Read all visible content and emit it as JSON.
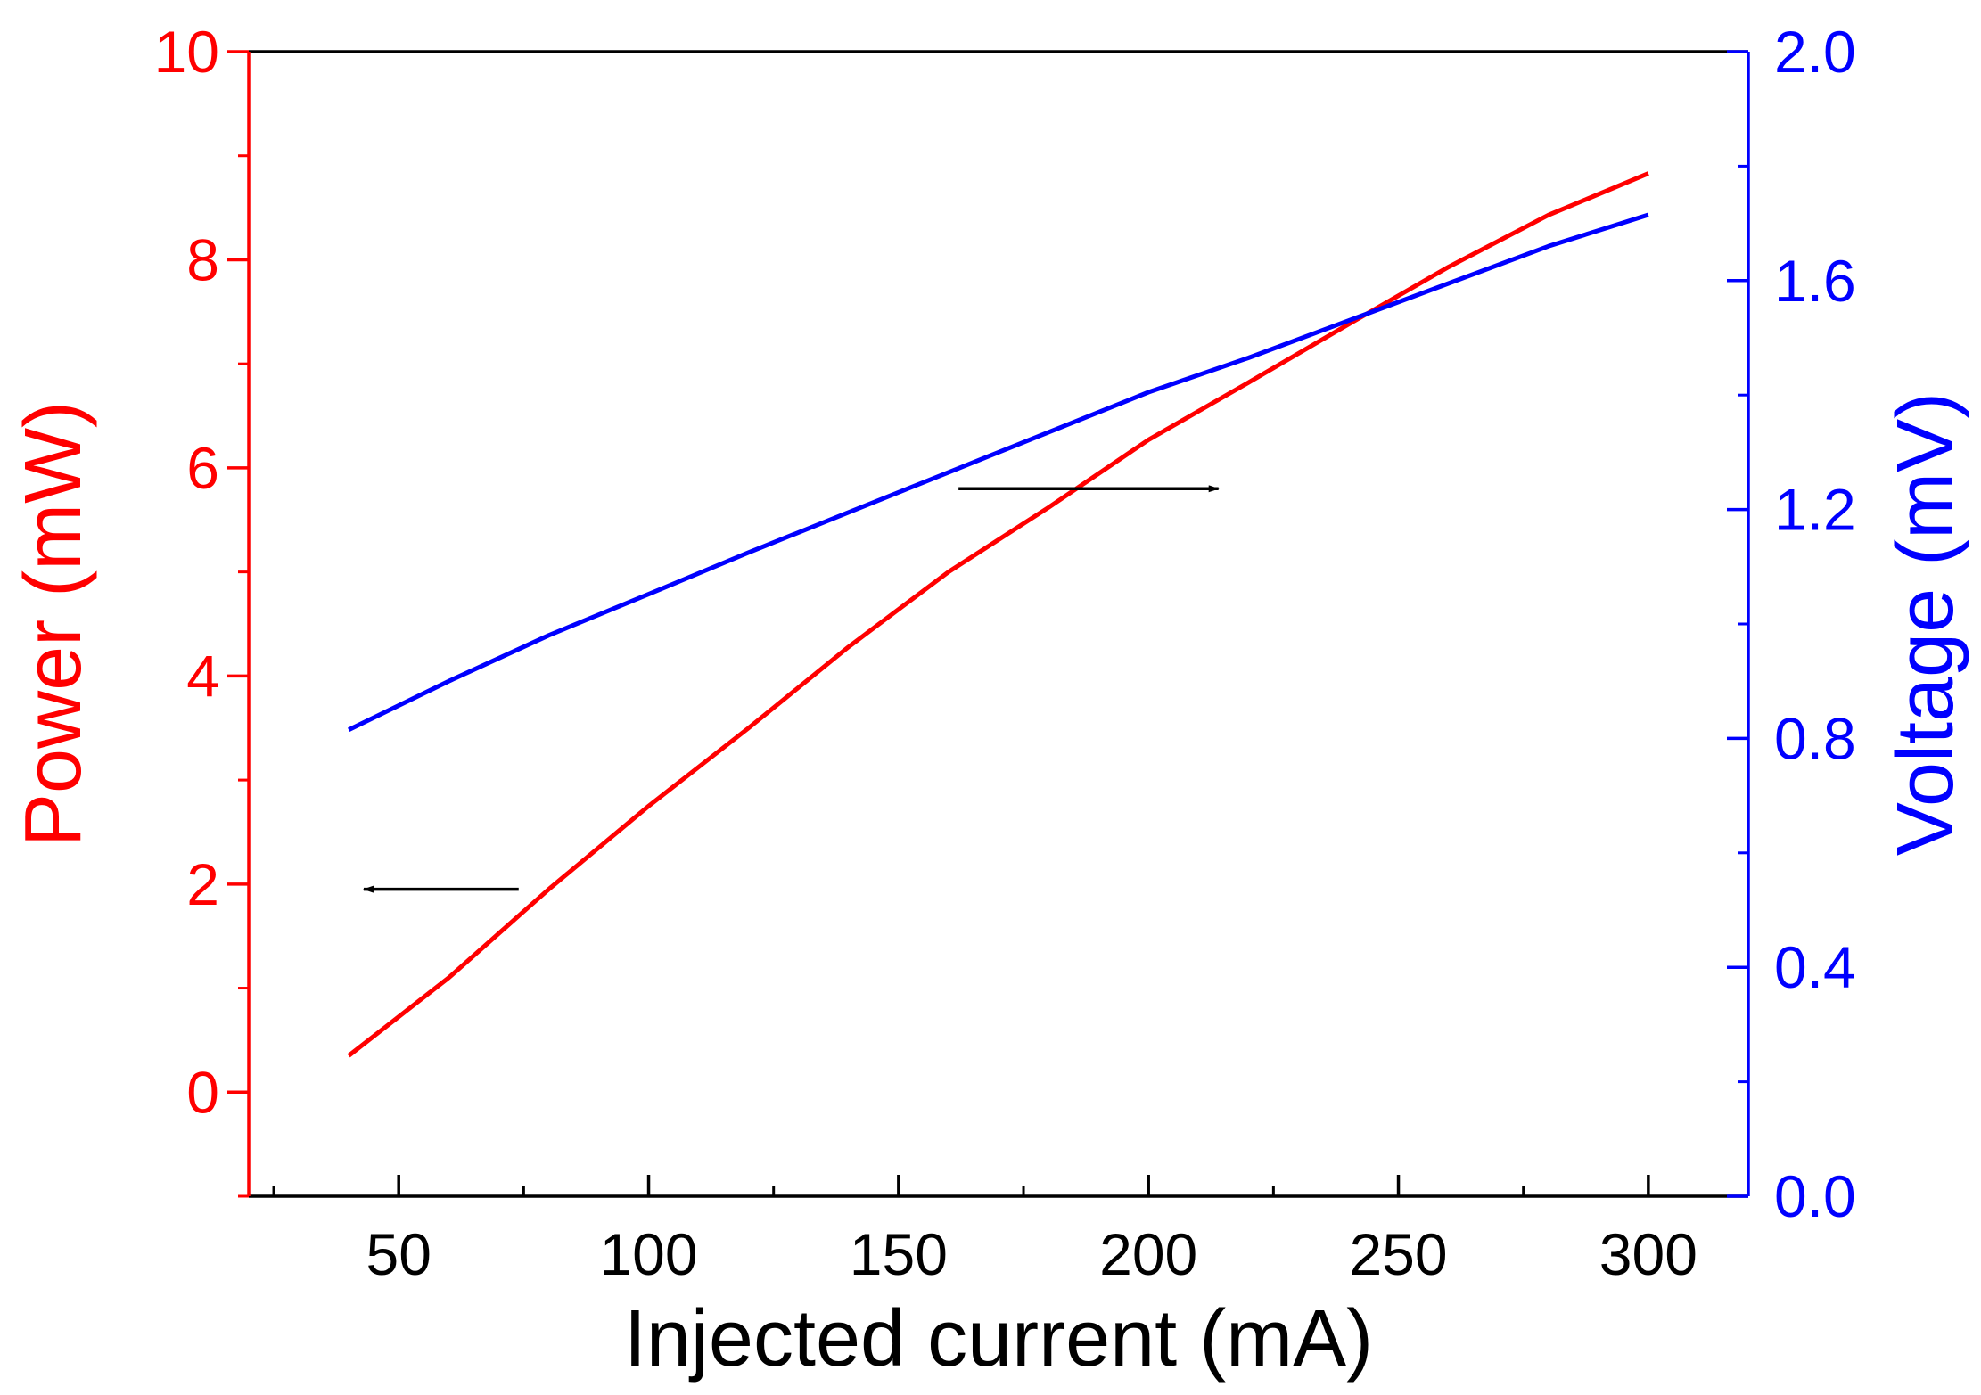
{
  "chart_data": {
    "type": "line",
    "title": "",
    "xlabel": "Injected current (mA)",
    "ylabel": "Power (mW)",
    "y2label": "Voltage (mV)",
    "xlim": [
      20,
      320
    ],
    "ylim": [
      -1,
      10
    ],
    "y2lim": [
      0,
      2.0
    ],
    "x_ticks": [
      50,
      100,
      150,
      200,
      250,
      300
    ],
    "x_tick_labels": [
      "50",
      "100",
      "150",
      "200",
      "250",
      "300"
    ],
    "x_minor_ticks": [
      25,
      75,
      125,
      175,
      225,
      275
    ],
    "y_ticks": [
      0,
      2,
      4,
      6,
      8,
      10
    ],
    "y_tick_labels": [
      "0",
      "2",
      "4",
      "6",
      "8",
      "10"
    ],
    "y_minor_ticks": [
      -1,
      1,
      3,
      5,
      7,
      9
    ],
    "y2_ticks": [
      0.0,
      0.4,
      0.8,
      1.2,
      1.6,
      2.0
    ],
    "y2_tick_labels": [
      "0.0",
      "0.4",
      "0.8",
      "1.2",
      "1.6",
      "2.0"
    ],
    "y2_minor_ticks": [
      0.2,
      0.6,
      1.0,
      1.4,
      1.8
    ],
    "grid": false,
    "colors": {
      "power": "#ff0000",
      "voltage": "#0000ff",
      "axis": "#000000",
      "arrow": "#000000"
    },
    "series": [
      {
        "name": "Power",
        "axis": "left",
        "x": [
          40,
          60,
          80,
          100,
          120,
          140,
          160,
          180,
          200,
          220,
          240,
          260,
          280,
          300
        ],
        "values": [
          0.35,
          1.1,
          1.95,
          2.75,
          3.5,
          4.28,
          5.0,
          5.62,
          6.27,
          6.82,
          7.38,
          7.93,
          8.43,
          8.83
        ]
      },
      {
        "name": "Voltage",
        "axis": "right",
        "x": [
          40,
          60,
          80,
          100,
          120,
          140,
          160,
          180,
          200,
          220,
          240,
          260,
          280,
          300
        ],
        "values": [
          0.815,
          0.9,
          0.98,
          1.052,
          1.125,
          1.195,
          1.265,
          1.335,
          1.405,
          1.465,
          1.53,
          1.595,
          1.66,
          1.715
        ]
      }
    ],
    "annotations": [
      {
        "type": "arrow",
        "direction": "left",
        "points_to": "left axis",
        "series": "Power",
        "from": [
          74,
          1.95
        ],
        "to": [
          43,
          1.95
        ]
      },
      {
        "type": "arrow",
        "direction": "right",
        "points_to": "right axis",
        "series": "Voltage",
        "from": [
          162,
          5.8
        ],
        "to": [
          214,
          5.8
        ]
      }
    ]
  }
}
